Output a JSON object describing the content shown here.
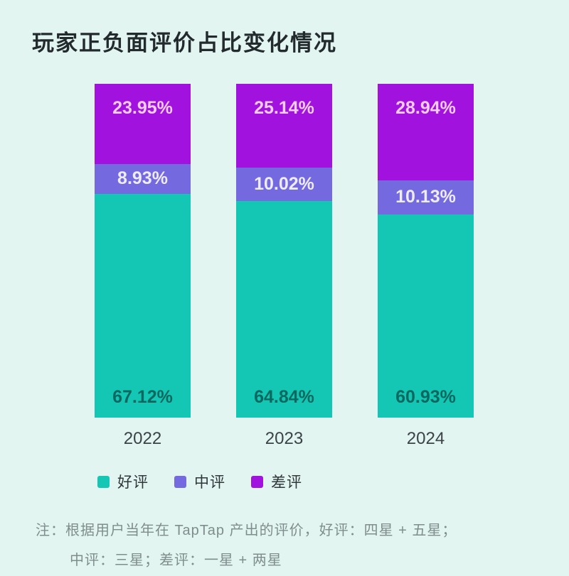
{
  "title": "玩家正负面评价占比变化情况",
  "chart_data": {
    "type": "bar",
    "stacked": true,
    "title": "玩家正负面评价占比变化情况",
    "categories": [
      "2022",
      "2023",
      "2024"
    ],
    "series": [
      {
        "name": "好评",
        "color": "#14C7B4",
        "label_color": "#09685F",
        "values": [
          67.12,
          64.84,
          60.93
        ],
        "labels": [
          "67.12%",
          "64.84%",
          "60.93%"
        ]
      },
      {
        "name": "中评",
        "color": "#7569E0",
        "label_color": "#EFECFA",
        "values": [
          8.93,
          10.02,
          10.13
        ],
        "labels": [
          "8.93%",
          "10.02%",
          "10.13%"
        ]
      },
      {
        "name": "差评",
        "color": "#A212DF",
        "label_color": "#F3CDEF",
        "values": [
          23.95,
          25.14,
          28.94
        ],
        "labels": [
          "23.95%",
          "25.14%",
          "28.94%"
        ]
      }
    ],
    "ylim": [
      0,
      100
    ],
    "xlabel": "",
    "ylabel": "",
    "grid": false,
    "legend_position": "bottom"
  },
  "legend": {
    "items": [
      {
        "label": "好评",
        "color": "#14C7B4"
      },
      {
        "label": "中评",
        "color": "#7569E0"
      },
      {
        "label": "差评",
        "color": "#A212DF"
      }
    ]
  },
  "footnote": {
    "line1": "注：根据用户当年在 TapTap 产出的评价，好评：四星 + 五星；",
    "line2": "中评：三星；差评：一星 + 两星"
  }
}
